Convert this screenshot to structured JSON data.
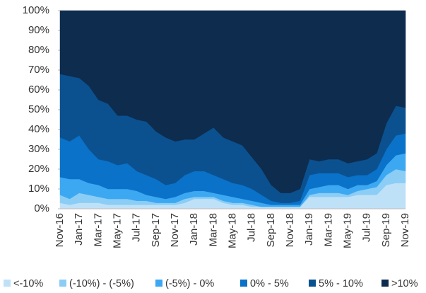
{
  "chart_data": {
    "type": "stacked_area_100",
    "categories": [
      "Nov-16",
      null,
      "Jan-17",
      null,
      "Mar-17",
      null,
      "May-17",
      null,
      "Jul-17",
      null,
      "Sep-17",
      null,
      "Nov-17",
      null,
      "Jan-18",
      null,
      "Mar-18",
      null,
      "May-18",
      null,
      "Jul-18",
      null,
      "Sep-18",
      null,
      "Nov-18",
      null,
      "Jan-19",
      null,
      "Mar-19",
      null,
      "May-19",
      null,
      "Jul-19",
      null,
      "Sep-19",
      null,
      "Nov-19"
    ],
    "series": [
      {
        "name": "<-10%",
        "color": "#bfe1f8",
        "values": [
          3,
          2,
          3,
          3,
          3,
          2,
          2,
          2,
          2,
          2,
          2,
          2,
          2,
          3,
          5,
          5,
          5,
          3,
          2,
          2,
          1,
          1,
          1,
          1,
          1,
          1,
          6,
          6,
          6,
          6,
          6,
          7,
          7,
          7,
          12,
          13,
          13
        ]
      },
      {
        "name": "(-10%) - (-5%)",
        "color": "#8ccdf5",
        "values": [
          4,
          3,
          5,
          4,
          3,
          3,
          3,
          3,
          2,
          2,
          1,
          1,
          1,
          2,
          1,
          1,
          1,
          1,
          1,
          1,
          1,
          0,
          0,
          0,
          0,
          0,
          1,
          2,
          2,
          2,
          1,
          2,
          3,
          4,
          5,
          7,
          6
        ]
      },
      {
        "name": "(-5%) - 0%",
        "color": "#3da8f2",
        "values": [
          9,
          10,
          7,
          6,
          6,
          5,
          5,
          5,
          5,
          3,
          3,
          2,
          3,
          3,
          3,
          3,
          2,
          3,
          3,
          2,
          2,
          2,
          1,
          1,
          1,
          1,
          3,
          3,
          4,
          4,
          3,
          3,
          2,
          3,
          5,
          7,
          9
        ]
      },
      {
        "name": "0% - 5%",
        "color": "#0a72c9",
        "values": [
          20,
          19,
          22,
          17,
          13,
          14,
          12,
          13,
          10,
          10,
          9,
          7,
          7,
          9,
          10,
          10,
          9,
          8,
          7,
          7,
          6,
          4,
          2,
          1,
          1,
          2,
          7,
          7,
          6,
          6,
          6,
          5,
          5,
          6,
          8,
          10,
          10
        ]
      },
      {
        "name": "5% - 10%",
        "color": "#0b5190",
        "values": [
          32,
          33,
          29,
          32,
          30,
          29,
          25,
          24,
          26,
          27,
          24,
          24,
          21,
          18,
          16,
          19,
          24,
          21,
          21,
          20,
          16,
          13,
          8,
          5,
          5,
          6,
          8,
          6,
          7,
          7,
          7,
          7,
          8,
          8,
          13,
          15,
          13
        ]
      },
      {
        "name": ">10%",
        "color": "#0d2c4e",
        "values": [
          32,
          33,
          34,
          38,
          45,
          47,
          53,
          53,
          55,
          56,
          61,
          64,
          66,
          65,
          65,
          62,
          59,
          64,
          66,
          68,
          74,
          80,
          88,
          92,
          92,
          90,
          75,
          76,
          75,
          75,
          77,
          76,
          75,
          72,
          57,
          48,
          49
        ]
      }
    ],
    "ylim": [
      0,
      100
    ],
    "yticks": [
      {
        "value": 0,
        "label": "0%"
      },
      {
        "value": 10,
        "label": "10%"
      },
      {
        "value": 20,
        "label": "20%"
      },
      {
        "value": 30,
        "label": "30%"
      },
      {
        "value": 40,
        "label": "40%"
      },
      {
        "value": 50,
        "label": "50%"
      },
      {
        "value": 60,
        "label": "60%"
      },
      {
        "value": 70,
        "label": "70%"
      },
      {
        "value": 80,
        "label": "80%"
      },
      {
        "value": 90,
        "label": "90%"
      },
      {
        "value": 100,
        "label": "100%"
      }
    ],
    "legend": "bottom"
  }
}
